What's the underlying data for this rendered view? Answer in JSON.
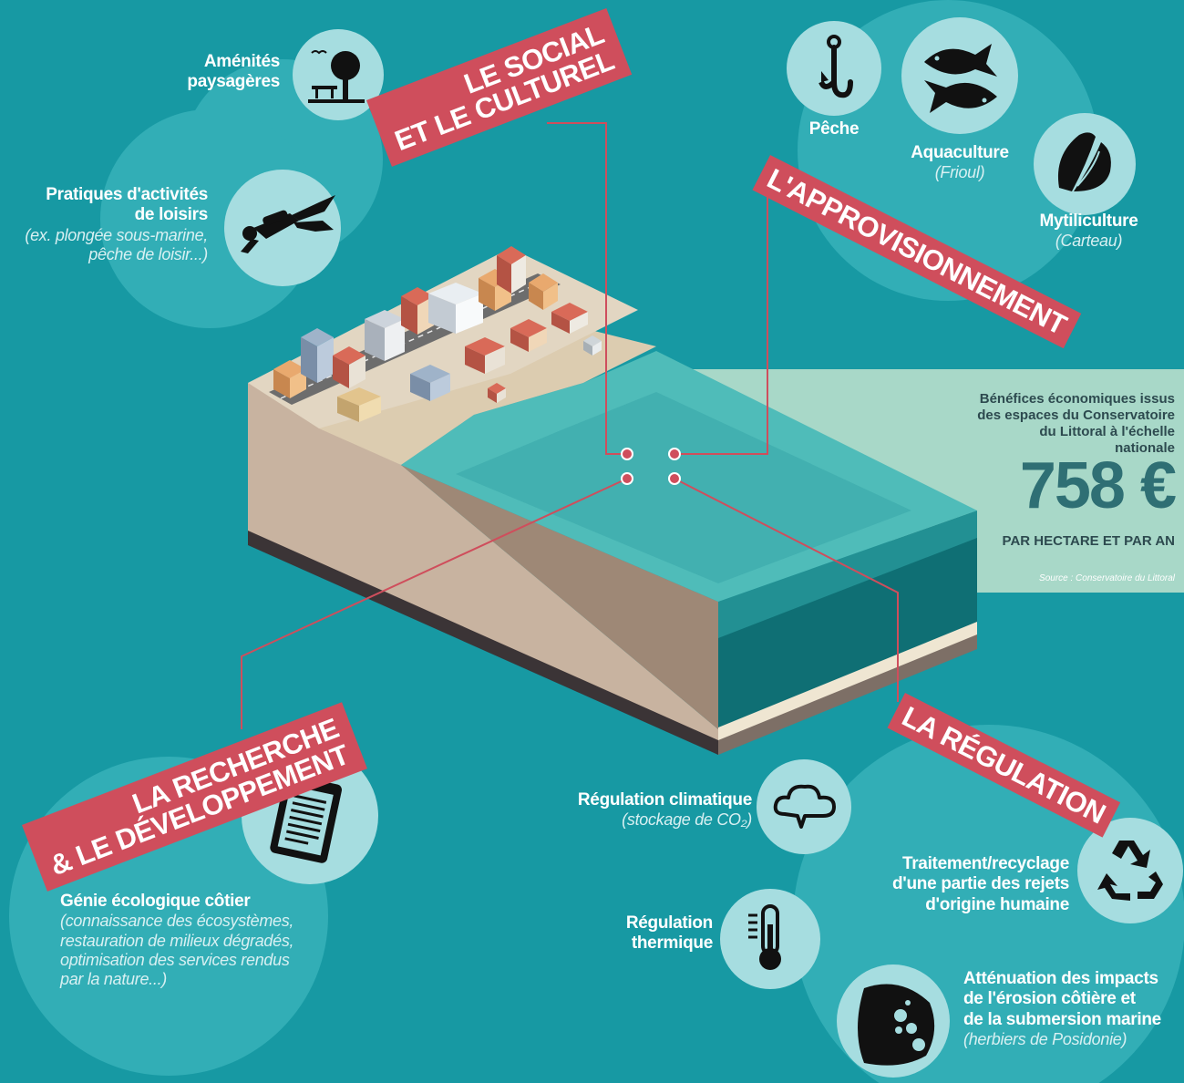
{
  "banners": {
    "social": [
      "LE SOCIAL",
      "ET LE CULTUREL"
    ],
    "provisioning": "L'APPROVISIONNEMENT",
    "research": [
      "LA RECHERCHE",
      "& LE DÉVELOPPEMENT"
    ],
    "regulation": "LA RÉGULATION"
  },
  "social": {
    "amenities": [
      "Aménités",
      "paysagères"
    ],
    "leisure": {
      "title": [
        "Pratiques d'activités",
        "de loisirs"
      ],
      "note": [
        "(ex. plongée sous-marine,",
        "pêche de loisir...)"
      ]
    }
  },
  "provisioning": {
    "fishing": "Pêche",
    "aquaculture": {
      "title": "Aquaculture",
      "note": "(Frioul)"
    },
    "mussel": {
      "title": "Mytiliculture",
      "note": "(Carteau)"
    }
  },
  "research": {
    "title": "Génie écologique côtier",
    "note": [
      "(connaissance des écosystèmes,",
      "restauration de milieux dégradés,",
      "optimisation des services rendus",
      "par la nature...)"
    ]
  },
  "regulation": {
    "climate": {
      "title": "Régulation climatique",
      "note": "(stockage de CO₂)"
    },
    "thermal": [
      "Régulation",
      "thermique"
    ],
    "treatment": [
      "Traitement/recyclage",
      "d'une partie des rejets",
      "d'origine humaine"
    ],
    "erosion": {
      "title": [
        "Atténuation des impacts",
        "de l'érosion côtière et",
        "de la submersion marine"
      ],
      "note": "(herbiers de Posidonie)"
    }
  },
  "economics": {
    "intro": [
      "Bénéfices économiques issus",
      "des espaces du Conservatoire",
      "du Littoral à l'échelle nationale"
    ],
    "value": "758 €",
    "unit": "PAR HECTARE ET PAR AN",
    "source": "Source : Conservatoire du Littoral"
  },
  "colors": {
    "background": "#1799a3",
    "circle": "#32aeb6",
    "banner": "#cf4e5c",
    "icon_circle": "#a6dde0",
    "panel": "#a8d8c8"
  },
  "icons": [
    "tree-bench-icon",
    "diver-icon",
    "fishhook-icon",
    "fish-icon",
    "mussel-icon",
    "clipboard-icon",
    "cloud-icon",
    "thermometer-icon",
    "recycle-icon",
    "rock-icon"
  ]
}
